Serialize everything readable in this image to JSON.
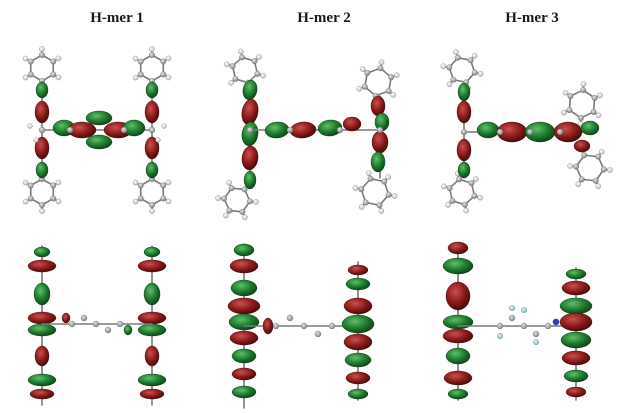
{
  "figure": {
    "panels": [
      {
        "label": "H-mer 1"
      },
      {
        "label": "H-mer 2"
      },
      {
        "label": "H-mer 3"
      }
    ],
    "colors": {
      "lobe_positive": "#1e7a2e",
      "lobe_negative": "#8b1a1a",
      "atom_carbon": "#a8a8a8",
      "atom_hydrogen": "#efefef",
      "atom_fluorine": "#9fd8e8",
      "atom_nitrogen": "#3a3ad0",
      "bond": "#7a7a7a"
    }
  }
}
